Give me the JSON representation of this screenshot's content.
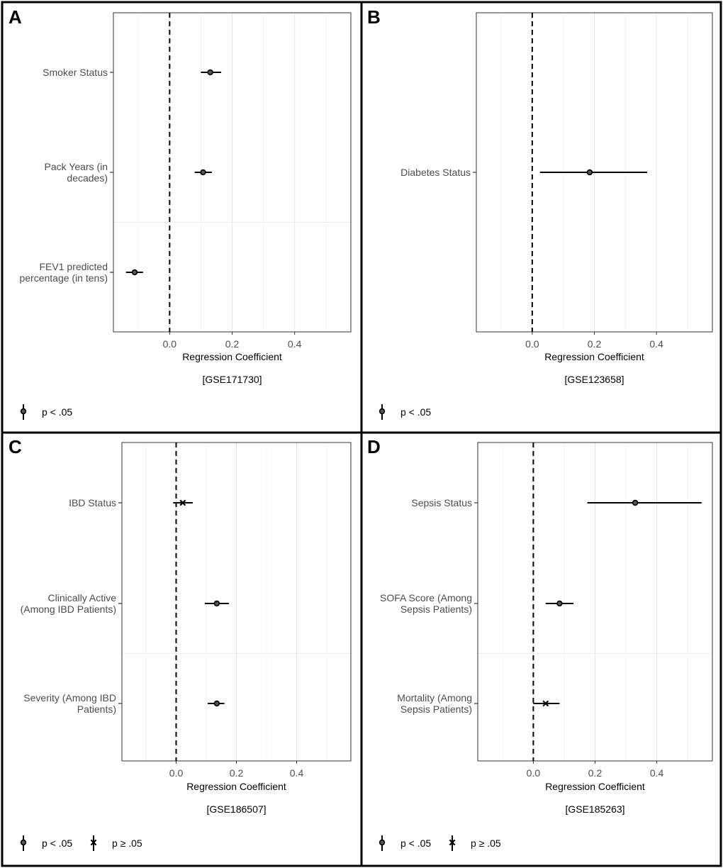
{
  "legend_labels": {
    "sig": "p < .05",
    "nonsig": "p ≥ .05"
  },
  "chart_data": [
    {
      "panel": "A",
      "type": "forest",
      "dataset": "[GSE171730]",
      "xlabel": "Regression Coefficient",
      "xlim": [
        -0.18,
        0.58
      ],
      "xticks": [
        0.0,
        0.2,
        0.4
      ],
      "xtick_labels": [
        "0.0",
        "0.2",
        "0.4"
      ],
      "reference_line": 0,
      "legend": [
        "sig"
      ],
      "rows": [
        {
          "label": [
            "Smoker Status"
          ],
          "estimate": 0.13,
          "lo": 0.1,
          "hi": 0.165,
          "significant": true
        },
        {
          "label": [
            "Pack Years (in",
            "decades)"
          ],
          "estimate": 0.107,
          "lo": 0.08,
          "hi": 0.135,
          "significant": true
        },
        {
          "label": [
            "FEV1 predicted",
            "percentage (in tens)"
          ],
          "estimate": -0.112,
          "lo": -0.14,
          "hi": -0.085,
          "significant": true
        }
      ]
    },
    {
      "panel": "B",
      "type": "forest",
      "dataset": "[GSE123658]",
      "xlabel": "Regression Coefficient",
      "xlim": [
        -0.18,
        0.58
      ],
      "xticks": [
        0.0,
        0.2,
        0.4
      ],
      "xtick_labels": [
        "0.0",
        "0.2",
        "0.4"
      ],
      "reference_line": 0,
      "legend": [
        "sig"
      ],
      "rows": [
        {
          "label": [
            "Diabetes Status"
          ],
          "estimate": 0.185,
          "lo": 0.025,
          "hi": 0.37,
          "significant": true
        }
      ]
    },
    {
      "panel": "C",
      "type": "forest",
      "dataset": "[GSE186507]",
      "xlabel": "Regression Coefficient",
      "xlim": [
        -0.18,
        0.58
      ],
      "xticks": [
        0.0,
        0.2,
        0.4
      ],
      "xtick_labels": [
        "0.0",
        "0.2",
        "0.4"
      ],
      "reference_line": 0,
      "legend": [
        "sig",
        "nonsig"
      ],
      "rows": [
        {
          "label": [
            "IBD Status"
          ],
          "estimate": 0.022,
          "lo": -0.01,
          "hi": 0.055,
          "significant": false
        },
        {
          "label": [
            "Clinically Active",
            "(Among IBD Patients)"
          ],
          "estimate": 0.135,
          "lo": 0.095,
          "hi": 0.175,
          "significant": true
        },
        {
          "label": [
            "Severity (Among IBD",
            "Patients)"
          ],
          "estimate": 0.135,
          "lo": 0.105,
          "hi": 0.16,
          "significant": true
        }
      ]
    },
    {
      "panel": "D",
      "type": "forest",
      "dataset": "[GSE185263]",
      "xlabel": "Regression Coefficient",
      "xlim": [
        -0.18,
        0.58
      ],
      "xticks": [
        0.0,
        0.2,
        0.4
      ],
      "xtick_labels": [
        "0.0",
        "0.2",
        "0.4"
      ],
      "reference_line": 0,
      "legend": [
        "sig",
        "nonsig"
      ],
      "rows": [
        {
          "label": [
            "Sepsis Status"
          ],
          "estimate": 0.33,
          "lo": 0.175,
          "hi": 0.545,
          "significant": true
        },
        {
          "label": [
            "SOFA Score (Among",
            "Sepsis Patients)"
          ],
          "estimate": 0.085,
          "lo": 0.04,
          "hi": 0.13,
          "significant": true
        },
        {
          "label": [
            "Mortality (Among",
            "Sepsis Patients)"
          ],
          "estimate": 0.04,
          "lo": 0.0,
          "hi": 0.085,
          "significant": false
        }
      ]
    }
  ]
}
